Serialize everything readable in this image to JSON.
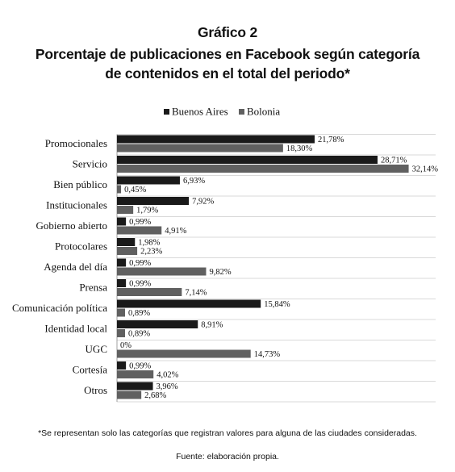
{
  "header": {
    "line1": "Gráfico 2",
    "line2": "Porcentaje de publicaciones en Facebook según categoría",
    "line3": "de contenidos en el total del periodo*"
  },
  "footer": {
    "note": "*Se representan solo las categorías que registran valores para alguna de las ciudades consideradas.",
    "source": "Fuente: elaboración propia."
  },
  "colors": {
    "buenos_aires": "#1a1a1a",
    "bolonia": "#606060",
    "grid": "#cccccc"
  },
  "chart_data": {
    "type": "bar",
    "orientation": "horizontal",
    "title": "Porcentaje de publicaciones en Facebook según categoría de contenidos en el total del periodo*",
    "legend_position": "top",
    "xlim": [
      0,
      35
    ],
    "categories": [
      "Promocionales",
      "Servicio",
      "Bien público",
      "Institucionales",
      "Gobierno abierto",
      "Protocolares",
      "Agenda del día",
      "Prensa",
      "Comunicación política",
      "Identidad local",
      "UGC",
      "Cortesía",
      "Otros"
    ],
    "series": [
      {
        "name": "Buenos Aires",
        "values": [
          21.78,
          28.71,
          6.93,
          7.92,
          0.99,
          1.98,
          0.99,
          0.99,
          15.84,
          8.91,
          0,
          0.99,
          3.96
        ],
        "labels": [
          "21,78%",
          "28,71%",
          "6,93%",
          "7,92%",
          "0,99%",
          "1,98%",
          "0,99%",
          "0,99%",
          "15,84%",
          "8,91%",
          "0%",
          "0,99%",
          "3,96%"
        ]
      },
      {
        "name": "Bolonia",
        "values": [
          18.3,
          32.14,
          0.45,
          1.79,
          4.91,
          2.23,
          9.82,
          7.14,
          0.89,
          0.89,
          14.73,
          4.02,
          2.68
        ],
        "labels": [
          "18,30%",
          "32,14%",
          "0,45%",
          "1,79%",
          "4,91%",
          "2,23%",
          "9,82%",
          "7,14%",
          "0,89%",
          "0,89%",
          "14,73%",
          "4,02%",
          "2,68%"
        ]
      }
    ]
  }
}
